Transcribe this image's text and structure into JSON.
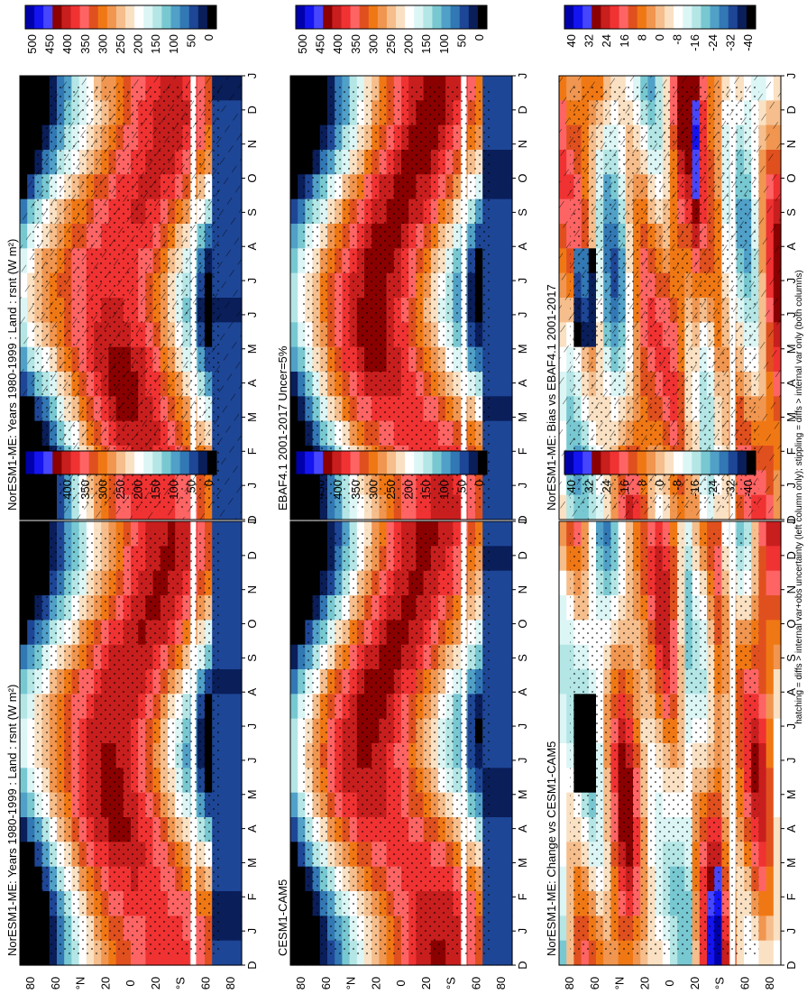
{
  "figure": {
    "caption": "hatching = diffs > internal var+obs uncertainty (left column only); stippling = diffs > internal var only (both columns)"
  },
  "chart_data": [
    {
      "type": "heatmap",
      "panel": "top-left",
      "title": "NorESM1-ME: Years 1980-1999 : Land : rsnt (W m²)",
      "x_ticks": [
        "D",
        "J",
        "F",
        "M",
        "A",
        "M",
        "J",
        "J",
        "A",
        "S",
        "O",
        "N",
        "D",
        "J"
      ],
      "y_ticks": [
        "80",
        "60",
        "°N",
        "20",
        "0",
        "20",
        "°S",
        "60",
        "80"
      ],
      "colorbar_ticks": [
        "500",
        "450",
        "400",
        "350",
        "300",
        "250",
        "200",
        "150",
        "100",
        "50",
        "0"
      ],
      "colorbar_range": [
        0,
        500
      ],
      "palette": [
        "#0000aa",
        "#1414f0",
        "#4646ff",
        "#8b0000",
        "#c81e1e",
        "#f03232",
        "#ff6464",
        "#e0501e",
        "#f07814",
        "#f09650",
        "#f5be8c",
        "#fae1c3",
        "#ffffff",
        "#dcf5f5",
        "#b4e6e6",
        "#78c8d2",
        "#50a0c8",
        "#3278b4",
        "#1e4696",
        "#0a1e5a",
        "#000000"
      ],
      "overlays": [
        "hatching",
        "stippling"
      ]
    },
    {
      "type": "heatmap",
      "panel": "top-right",
      "title": "NorESM1-ME: Years 1980-1999 : Land : rsnt (W m²)",
      "x_ticks": [
        "D",
        "J",
        "F",
        "M",
        "A",
        "M",
        "J",
        "J",
        "A",
        "S",
        "O",
        "N",
        "D",
        "J"
      ],
      "y_ticks": [
        "80",
        "60",
        "°N",
        "20",
        "0",
        "20",
        "°S",
        "60",
        "80"
      ],
      "colorbar_ticks": [
        "500",
        "450",
        "400",
        "350",
        "300",
        "250",
        "200",
        "150",
        "100",
        "50",
        "0"
      ],
      "colorbar_range": [
        0,
        500
      ],
      "overlays": [
        "stippling"
      ]
    },
    {
      "type": "heatmap",
      "panel": "middle-left",
      "title": "EBAF4.1 2001-2017 Uncer=5%",
      "x_ticks": [
        "D",
        "J",
        "F",
        "M",
        "A",
        "M",
        "J",
        "J",
        "A",
        "S",
        "O",
        "N",
        "D",
        "J"
      ],
      "y_ticks": [
        "80",
        "60",
        "°N",
        "20",
        "0",
        "20",
        "°S",
        "60",
        "80"
      ],
      "colorbar_ticks": [
        "500",
        "450",
        "400",
        "350",
        "300",
        "250",
        "200",
        "150",
        "100",
        "50",
        "0"
      ],
      "colorbar_range": [
        0,
        500
      ],
      "overlays": [
        "stippling"
      ]
    },
    {
      "type": "heatmap",
      "panel": "middle-right",
      "title": "CESM1-CAM5",
      "x_ticks": [
        "D",
        "J",
        "F",
        "M",
        "A",
        "M",
        "J",
        "J",
        "A",
        "S",
        "O",
        "N",
        "D",
        "J"
      ],
      "y_ticks": [
        "80",
        "60",
        "°N",
        "20",
        "0",
        "20",
        "°S",
        "60",
        "80"
      ],
      "colorbar_ticks": [
        "500",
        "450",
        "400",
        "350",
        "300",
        "250",
        "200",
        "150",
        "100",
        "50",
        "0"
      ],
      "colorbar_range": [
        0,
        500
      ],
      "overlays": [
        "stippling"
      ]
    },
    {
      "type": "heatmap",
      "panel": "bottom-left",
      "title": "NorESM1-ME: Bias vs EBAF4.1 2001-2017",
      "x_ticks": [
        "D",
        "J",
        "F",
        "M",
        "A",
        "M",
        "J",
        "J",
        "A",
        "S",
        "O",
        "N",
        "D",
        "J"
      ],
      "y_ticks": [
        "80",
        "60",
        "°N",
        "20",
        "0",
        "20",
        "°S",
        "60",
        "80"
      ],
      "colorbar_ticks": [
        "40",
        "32",
        "24",
        "16",
        "8",
        "0",
        "-8",
        "-16",
        "-24",
        "-32",
        "-40"
      ],
      "colorbar_range": [
        -40,
        40
      ],
      "palette": [
        "#0000aa",
        "#1414f0",
        "#4646ff",
        "#8b0000",
        "#c81e1e",
        "#f03232",
        "#ff6464",
        "#e0501e",
        "#f07814",
        "#f09650",
        "#f5be8c",
        "#fae1c3",
        "#ffffff",
        "#dcf5f5",
        "#b4e6e6",
        "#78c8d2",
        "#50a0c8",
        "#3278b4",
        "#1e4696",
        "#0a1e5a",
        "#000000"
      ],
      "overlays": [
        "hatching",
        "stippling"
      ]
    },
    {
      "type": "heatmap",
      "panel": "bottom-right",
      "title": "NorESM1-ME: Change vs CESM1-CAM5",
      "x_ticks": [
        "D",
        "J",
        "F",
        "M",
        "A",
        "M",
        "J",
        "J",
        "A",
        "S",
        "O",
        "N",
        "D",
        "J"
      ],
      "y_ticks": [
        "80",
        "60",
        "°N",
        "20",
        "0",
        "20",
        "°S",
        "60",
        "80"
      ],
      "colorbar_ticks": [
        "40",
        "32",
        "24",
        "16",
        "8",
        "0",
        "-8",
        "-16",
        "-24",
        "-32",
        "-40"
      ],
      "colorbar_range": [
        -40,
        40
      ],
      "overlays": [
        "stippling"
      ]
    }
  ]
}
